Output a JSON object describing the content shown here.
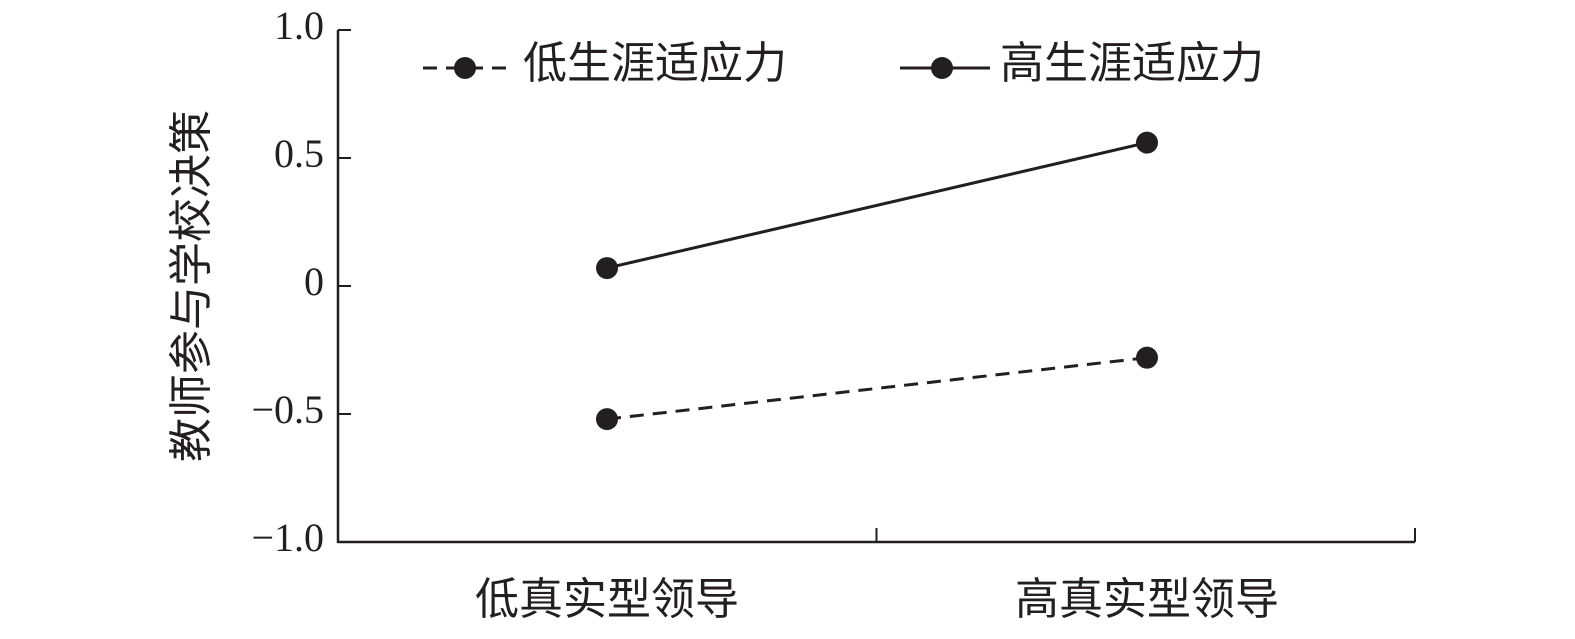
{
  "chart_data": {
    "type": "line",
    "title": "",
    "xlabel": "",
    "ylabel": "教师参与学校决策",
    "categories": [
      "低真实型领导",
      "高真实型领导"
    ],
    "ylim": [
      -1.0,
      1.0
    ],
    "yticks": [
      "1.0",
      "0.5",
      "0",
      "−0.5",
      "−1.0"
    ],
    "ytick_values": [
      1.0,
      0.5,
      0,
      -0.5,
      -1.0
    ],
    "grid": false,
    "legend_position": "top",
    "series": [
      {
        "name": "低生涯适应力",
        "values": [
          -0.52,
          -0.28
        ],
        "style": "dashed",
        "marker": "circle",
        "color": "#231f20"
      },
      {
        "name": "高生涯适应力",
        "values": [
          0.07,
          0.56
        ],
        "style": "solid",
        "marker": "circle",
        "color": "#231f20"
      }
    ]
  }
}
